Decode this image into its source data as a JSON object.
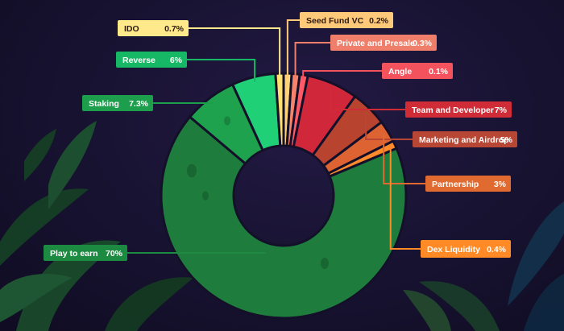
{
  "chart_data": {
    "type": "pie",
    "title": "",
    "legend_placement": "callouts around donut",
    "segments": [
      {
        "label": "Seed Fund VC",
        "value_text": "0.2%",
        "value": 0.2,
        "color": "#ffd37a",
        "label_bg": "#ffc97a",
        "text_color": "#2a1a10"
      },
      {
        "label": "Private and  Presale",
        "value_text": "0.3%",
        "value": 0.3,
        "color": "#f5846a",
        "label_bg": "#ef7e6a",
        "text_color": "#ffffff"
      },
      {
        "label": "Angle",
        "value_text": "0.1%",
        "value": 0.1,
        "color": "#ff5a66",
        "label_bg": "#f4525c",
        "text_color": "#ffffff"
      },
      {
        "label": "Team and Developer",
        "value_text": "7%",
        "value": 7,
        "color": "#d0283a",
        "label_bg": "#cf2c38",
        "text_color": "#ffffff"
      },
      {
        "label": "Marketing and Airdrop",
        "value_text": "5%",
        "value": 5,
        "color": "#b8432f",
        "label_bg": "#b84634",
        "text_color": "#ffffff"
      },
      {
        "label": "Partnership",
        "value_text": "3%",
        "value": 3,
        "color": "#dd6432",
        "label_bg": "#e06a30",
        "text_color": "#ffffff"
      },
      {
        "label": "Dex Liquidity",
        "value_text": "0.4%",
        "value": 0.4,
        "color": "#ff8a2a",
        "label_bg": "#ff8a26",
        "text_color": "#ffffff"
      },
      {
        "label": "Play to earn",
        "value_text": "70%",
        "value": 70,
        "color": "#1e7d3c",
        "label_bg": "#1c8a40",
        "text_color": "#ffffff"
      },
      {
        "label": "Staking",
        "value_text": "7.3%",
        "value": 7.3,
        "color": "#1ea24e",
        "label_bg": "#1d9e4c",
        "text_color": "#ffffff"
      },
      {
        "label": "Reverse",
        "value_text": "6%",
        "value": 6,
        "color": "#1fd077",
        "label_bg": "#17b865",
        "text_color": "#ffffff"
      },
      {
        "label": "IDO",
        "value_text": "0.7%",
        "value": 0.7,
        "color": "#ffe16b",
        "label_bg": "#ffe98a",
        "text_color": "#2a1a10"
      }
    ]
  }
}
